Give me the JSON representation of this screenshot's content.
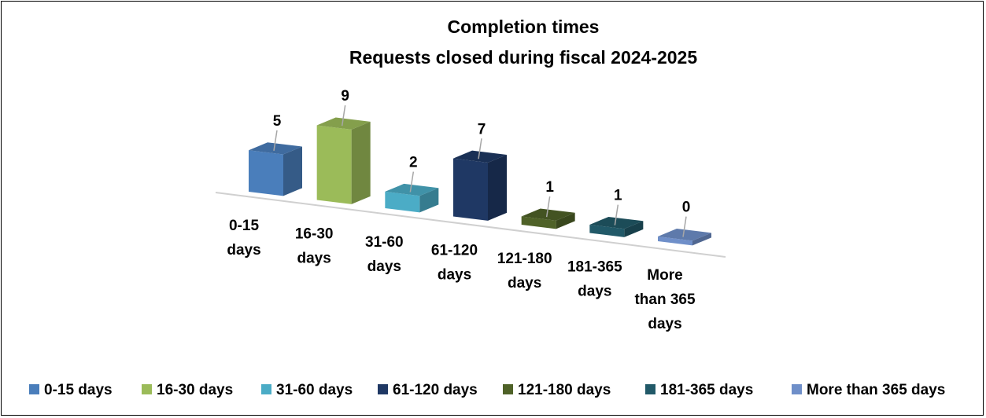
{
  "chart_data": {
    "type": "bar",
    "title": "Completion times",
    "subtitle": "Requests closed during fiscal 2024-2025",
    "categories": [
      "0-15 days",
      "16-30 days",
      "31-60 days",
      "61-120 days",
      "121-180 days",
      "181-365 days",
      "More than 365 days"
    ],
    "category_label_lines": [
      [
        "0-15",
        "days"
      ],
      [
        "16-30",
        "days"
      ],
      [
        "31-60",
        "days"
      ],
      [
        "61-120",
        "days"
      ],
      [
        "121-180",
        "days"
      ],
      [
        "181-365",
        "days"
      ],
      [
        "More",
        "than 365",
        "days"
      ]
    ],
    "values": [
      5,
      9,
      2,
      7,
      1,
      1,
      0
    ],
    "data_labels": [
      "5",
      "9",
      "2",
      "7",
      "1",
      "1",
      "0"
    ],
    "colors": [
      "#4a7ebb",
      "#9bbb59",
      "#4bacc6",
      "#1f3864",
      "#4f6228",
      "#215968",
      "#6f8fc9"
    ],
    "legend": [
      "0-15 days",
      "16-30 days",
      "31-60 days",
      "61-120 days",
      "121-180 days",
      "181-365 days",
      "More than 365 days"
    ],
    "legend_position": "bottom",
    "style": "3d-column",
    "grid": false,
    "ylim": [
      0,
      9
    ]
  }
}
